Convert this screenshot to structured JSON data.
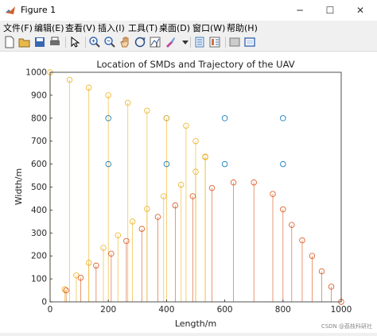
{
  "window": {
    "title": "Figure 1"
  },
  "window_controls": {
    "minimize": "─",
    "maximize": "☐",
    "close": "✕"
  },
  "menu": [
    {
      "label": "文件(F)"
    },
    {
      "label": "编辑(E)"
    },
    {
      "label": "查看(V)"
    },
    {
      "label": "插入(I)"
    },
    {
      "label": "工具(T)"
    },
    {
      "label": "桌面(D)"
    },
    {
      "label": "窗口(W)"
    },
    {
      "label": "帮助(H)"
    }
  ],
  "toolbar": [
    {
      "name": "new-figure-icon",
      "color": "#ffffff"
    },
    {
      "name": "open-folder-icon",
      "color": "#e8b84a"
    },
    {
      "name": "save-icon",
      "color": "#3a68b0"
    },
    {
      "name": "print-icon",
      "color": "#6d6d6d"
    },
    {
      "name": "sep"
    },
    {
      "name": "pointer-icon",
      "color": "#000000"
    },
    {
      "name": "sep"
    },
    {
      "name": "zoom-in-icon",
      "color": "#3a68b0"
    },
    {
      "name": "zoom-out-icon",
      "color": "#3a68b0"
    },
    {
      "name": "pan-icon",
      "color": "#b07030"
    },
    {
      "name": "rotate-3d-icon",
      "color": "#2a4f8a"
    },
    {
      "name": "data-cursor-icon",
      "color": "#2a4f8a"
    },
    {
      "name": "brush-icon",
      "color": "#c04a9a"
    },
    {
      "name": "dropdown-icon",
      "color": "#333333"
    },
    {
      "name": "sep"
    },
    {
      "name": "link-plot-icon",
      "color": "#4a7fc0"
    },
    {
      "name": "colorbar-icon",
      "color": "#d07040"
    },
    {
      "name": "sep"
    },
    {
      "name": "hide-plot-tools-icon",
      "color": "#777777"
    },
    {
      "name": "show-plot-tools-icon",
      "color": "#3a68b0"
    }
  ],
  "chart_data": {
    "type": "scatter",
    "title": "Location of SMDs and Trajectory of the UAV",
    "xlabel": "Length/m",
    "ylabel": "Width/m",
    "xlim": [
      0,
      1000
    ],
    "ylim": [
      0,
      1000
    ],
    "xticks": [
      "0",
      "200",
      "400",
      "600",
      "800",
      "1000"
    ],
    "yticks": [
      "0",
      "100",
      "200",
      "300",
      "400",
      "500",
      "600",
      "700",
      "800",
      "900",
      "1000"
    ],
    "grid": false,
    "series": [
      {
        "color": "#0072bd",
        "marker": "circle",
        "stems": false,
        "points": [
          [
            200,
            800
          ],
          [
            400,
            800
          ],
          [
            600,
            800
          ],
          [
            800,
            800
          ],
          [
            200,
            600
          ],
          [
            400,
            600
          ],
          [
            600,
            600
          ],
          [
            800,
            600
          ]
        ]
      },
      {
        "color": "#edb120",
        "marker": "circle",
        "stems": true,
        "points": [
          [
            0,
            1000
          ],
          [
            67,
            967
          ],
          [
            133,
            933
          ],
          [
            200,
            900
          ],
          [
            267,
            867
          ],
          [
            333,
            833
          ],
          [
            400,
            800
          ],
          [
            467,
            767
          ],
          [
            500,
            700
          ],
          [
            533,
            633
          ],
          [
            533,
            630
          ],
          [
            500,
            567
          ],
          [
            450,
            510
          ],
          [
            390,
            460
          ],
          [
            333,
            405
          ],
          [
            283,
            350
          ],
          [
            233,
            290
          ],
          [
            183,
            235
          ],
          [
            133,
            170
          ],
          [
            90,
            115
          ],
          [
            50,
            55
          ]
        ]
      },
      {
        "color": "#d95319",
        "marker": "circle",
        "stems": true,
        "points": [
          [
            55,
            50
          ],
          [
            105,
            105
          ],
          [
            158,
            158
          ],
          [
            210,
            210
          ],
          [
            262,
            265
          ],
          [
            315,
            318
          ],
          [
            370,
            370
          ],
          [
            430,
            420
          ],
          [
            490,
            460
          ],
          [
            556,
            496
          ],
          [
            630,
            520
          ],
          [
            700,
            520
          ],
          [
            765,
            470
          ],
          [
            800,
            403
          ],
          [
            830,
            335
          ],
          [
            866,
            268
          ],
          [
            900,
            200
          ],
          [
            933,
            133
          ],
          [
            966,
            66
          ],
          [
            1000,
            0
          ]
        ]
      }
    ]
  },
  "watermark": "CSDN @荔枝科研社"
}
